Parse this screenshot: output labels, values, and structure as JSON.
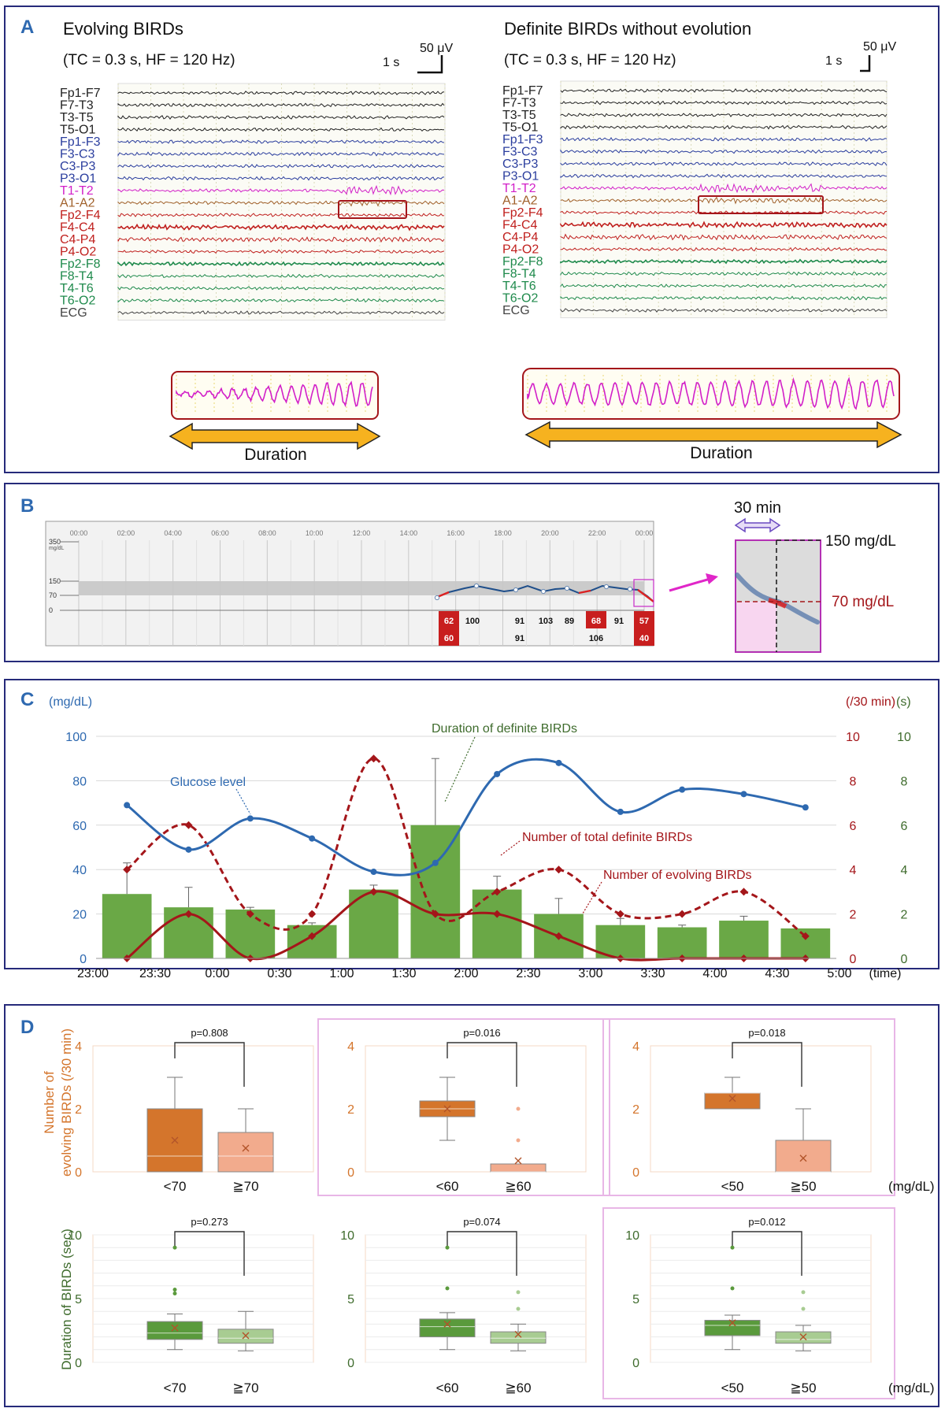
{
  "panel_labels": {
    "a": "A",
    "b": "B",
    "c": "C",
    "d": "D"
  },
  "panelA": {
    "left": {
      "title": "Evolving BIRDs",
      "settings": "(TC = 0.3 s, HF = 120 Hz)",
      "scale_time": "1 s",
      "scale_amp": "50 μV",
      "channels": [
        {
          "name": "Fp1-F7",
          "color": "#222222"
        },
        {
          "name": "F7-T3",
          "color": "#222222"
        },
        {
          "name": "T3-T5",
          "color": "#222222"
        },
        {
          "name": "T5-O1",
          "color": "#222222"
        },
        {
          "name": "Fp1-F3",
          "color": "#2b3e9e"
        },
        {
          "name": "F3-C3",
          "color": "#2b3e9e"
        },
        {
          "name": "C3-P3",
          "color": "#2b3e9e"
        },
        {
          "name": "P3-O1",
          "color": "#2b3e9e"
        },
        {
          "name": "T1-T2",
          "color": "#d21fc8"
        },
        {
          "name": "A1-A2",
          "color": "#a0602a"
        },
        {
          "name": "Fp2-F4",
          "color": "#c0201e"
        },
        {
          "name": "F4-C4",
          "color": "#c0201e"
        },
        {
          "name": "C4-P4",
          "color": "#c0201e"
        },
        {
          "name": "P4-O2",
          "color": "#c0201e"
        },
        {
          "name": "Fp2-F8",
          "color": "#1f8a4c"
        },
        {
          "name": "F8-T4",
          "color": "#1f8a4c"
        },
        {
          "name": "T4-T6",
          "color": "#1f8a4c"
        },
        {
          "name": "T6-O2",
          "color": "#1f8a4c"
        },
        {
          "name": "ECG",
          "color": "#444444"
        }
      ],
      "duration_label": "Duration"
    },
    "right": {
      "title": "Definite BIRDs without evolution",
      "settings": "(TC = 0.3 s, HF = 120 Hz)",
      "scale_time": "1 s",
      "scale_amp": "50 μV",
      "channels": [
        {
          "name": "Fp1-F7",
          "color": "#222222"
        },
        {
          "name": "F7-T3",
          "color": "#222222"
        },
        {
          "name": "T3-T5",
          "color": "#222222"
        },
        {
          "name": "T5-O1",
          "color": "#222222"
        },
        {
          "name": "Fp1-F3",
          "color": "#2b3e9e"
        },
        {
          "name": "F3-C3",
          "color": "#2b3e9e"
        },
        {
          "name": "C3-P3",
          "color": "#2b3e9e"
        },
        {
          "name": "P3-O1",
          "color": "#2b3e9e"
        },
        {
          "name": "T1-T2",
          "color": "#d21fc8"
        },
        {
          "name": "A1-A2",
          "color": "#a0602a"
        },
        {
          "name": "Fp2-F4",
          "color": "#c0201e"
        },
        {
          "name": "F4-C4",
          "color": "#c0201e"
        },
        {
          "name": "C4-P4",
          "color": "#c0201e"
        },
        {
          "name": "P4-O2",
          "color": "#c0201e"
        },
        {
          "name": "Fp2-F8",
          "color": "#1f8a4c"
        },
        {
          "name": "F8-T4",
          "color": "#1f8a4c"
        },
        {
          "name": "T4-T6",
          "color": "#1f8a4c"
        },
        {
          "name": "T6-O2",
          "color": "#1f8a4c"
        },
        {
          "name": "ECG",
          "color": "#444444"
        }
      ],
      "duration_label": "Duration"
    }
  },
  "panelB": {
    "time_ticks": [
      "00:00",
      "02:00",
      "04:00",
      "06:00",
      "08:00",
      "10:00",
      "12:00",
      "14:00",
      "16:00",
      "18:00",
      "20:00",
      "22:00",
      "00:00"
    ],
    "y_ticks": [
      "350",
      "150",
      "70",
      "0"
    ],
    "y_unit": "mg/dL",
    "readings_top": [
      {
        "v": "62",
        "red": true
      },
      {
        "v": "100",
        "red": false
      },
      {
        "v": "91",
        "red": false
      },
      {
        "v": "103",
        "red": false
      },
      {
        "v": "89",
        "red": false
      },
      {
        "v": "68",
        "red": true
      },
      {
        "v": "91",
        "red": false
      },
      {
        "v": "57",
        "red": true
      }
    ],
    "readings_bottom": [
      {
        "v": "60",
        "red": true
      },
      {
        "v": "91",
        "red": false
      },
      {
        "v": "106",
        "red": false
      },
      {
        "v": "40",
        "red": true
      }
    ],
    "zoom_window_label": "30 min",
    "label_150": "150 mg/dL",
    "label_70": "70 mg/dL"
  },
  "chart_data": [
    {
      "type": "bar+line",
      "title": "",
      "x_labels": [
        "23:00",
        "23:30",
        "0:00",
        "0:30",
        "1:00",
        "1:30",
        "2:00",
        "2:30",
        "3:00",
        "3:30",
        "4:00",
        "4:30",
        "5:00"
      ],
      "x_unit": "(time)",
      "left_axis": {
        "label": "(mg/dL)",
        "ticks": [
          "0",
          "20",
          "40",
          "60",
          "80",
          "100"
        ],
        "range": [
          0,
          100
        ]
      },
      "right_axis_1": {
        "label": "(/30 min)",
        "ticks": [
          "0",
          "2",
          "4",
          "6",
          "8",
          "10"
        ],
        "range": [
          0,
          10
        ]
      },
      "right_axis_2": {
        "label": "(s)",
        "ticks": [
          "0",
          "2",
          "4",
          "6",
          "8",
          "10"
        ],
        "range": [
          0,
          10
        ]
      },
      "duration_bars": {
        "name": "Duration of definite BIRDs",
        "unit": "s",
        "values": [
          2.9,
          2.3,
          2.2,
          1.5,
          3.1,
          6.0,
          3.1,
          2.0,
          1.5,
          1.4,
          1.7,
          1.35
        ],
        "error_up": [
          1.4,
          0.9,
          0.1,
          0.1,
          0.2,
          3.0,
          0.6,
          0.7,
          0.3,
          0.1,
          0.2,
          0.0
        ]
      },
      "glucose": {
        "name": "Glucose level",
        "unit": "mg/dL",
        "x_index": [
          0.25,
          1.25,
          2.25,
          3.25,
          4.25,
          5.25,
          6.25,
          7.25,
          8.25,
          9.25,
          10.25,
          11.25
        ],
        "values": [
          69,
          49,
          63,
          54,
          39,
          43,
          83,
          88,
          66,
          76,
          74,
          68
        ]
      },
      "total_definite": {
        "name": "Number of total definite BIRDs",
        "unit": "/30 min",
        "x_index": [
          0.25,
          1.25,
          2.25,
          3.25,
          4.25,
          5.25,
          6.25,
          7.25,
          8.25,
          9.25,
          10.25,
          11.25
        ],
        "values": [
          4,
          6,
          2,
          2,
          9,
          2,
          3,
          4,
          2,
          2,
          3,
          1
        ]
      },
      "evolving": {
        "name": "Number of evolving BIRDs",
        "unit": "/30 min",
        "x_index": [
          0.25,
          1.25,
          2.25,
          3.25,
          4.25,
          5.25,
          6.25,
          7.25,
          8.25,
          9.25,
          10.25,
          11.25
        ],
        "values": [
          0,
          2,
          0,
          1,
          3,
          2,
          2,
          1,
          0,
          0,
          0,
          0
        ]
      }
    },
    {
      "type": "boxplot",
      "panel": "D",
      "rows": [
        {
          "ylabel": "Number of evolving BIRDs (/30 min)",
          "yticks": [
            "0",
            "2",
            "4"
          ],
          "ymax": 4,
          "colors": [
            "#d4752c",
            "#f2ab8d"
          ],
          "groups": [
            {
              "pvalue": "p=0.808",
              "highlight": false,
              "labels": [
                "<70",
                "≧70"
              ],
              "boxes": [
                {
                  "min": 0,
                  "q1": 0,
                  "median": 0.5,
                  "q3": 2,
                  "max": 3,
                  "mean": 1.0,
                  "outliers": []
                },
                {
                  "min": 0,
                  "q1": 0,
                  "median": 0.5,
                  "q3": 1.25,
                  "max": 2,
                  "mean": 0.75,
                  "outliers": []
                }
              ]
            },
            {
              "pvalue": "p=0.016",
              "highlight": true,
              "labels": [
                "<60",
                "≧60"
              ],
              "boxes": [
                {
                  "min": 1,
                  "q1": 1.75,
                  "median": 2,
                  "q3": 2.25,
                  "max": 3,
                  "mean": 2.0,
                  "outliers": []
                },
                {
                  "min": 0,
                  "q1": 0,
                  "median": 0,
                  "q3": 0.25,
                  "max": 0.25,
                  "mean": 0.35,
                  "outliers": [
                    1,
                    2
                  ]
                }
              ]
            },
            {
              "pvalue": "p=0.018",
              "highlight": true,
              "labels": [
                "<50",
                "≧50"
              ],
              "unit": "(mg/dL)",
              "boxes": [
                {
                  "min": 2,
                  "q1": 2,
                  "median": 2.5,
                  "q3": 2.5,
                  "max": 3,
                  "mean": 2.33,
                  "outliers": []
                },
                {
                  "min": 0,
                  "q1": 0,
                  "median": 0,
                  "q3": 1,
                  "max": 2,
                  "mean": 0.43,
                  "outliers": []
                }
              ]
            }
          ]
        },
        {
          "ylabel": "Duration of BIRDs (sec)",
          "yticks": [
            "0",
            "5",
            "10"
          ],
          "ymax": 10,
          "colors": [
            "#5a9a3c",
            "#a8cc92"
          ],
          "groups": [
            {
              "pvalue": "p=0.273",
              "highlight": false,
              "labels": [
                "<70",
                "≧70"
              ],
              "boxes": [
                {
                  "min": 1,
                  "q1": 1.8,
                  "median": 2.3,
                  "q3": 3.2,
                  "max": 3.8,
                  "mean": 2.7,
                  "outliers": [
                    5.4,
                    5.7,
                    9
                  ]
                },
                {
                  "min": 0.9,
                  "q1": 1.5,
                  "median": 1.9,
                  "q3": 2.6,
                  "max": 4,
                  "mean": 2.1,
                  "outliers": []
                }
              ]
            },
            {
              "pvalue": "p=0.074",
              "highlight": false,
              "labels": [
                "<60",
                "≧60"
              ],
              "boxes": [
                {
                  "min": 1,
                  "q1": 2,
                  "median": 2.8,
                  "q3": 3.4,
                  "max": 3.9,
                  "mean": 3.0,
                  "outliers": [
                    5.8,
                    9
                  ]
                },
                {
                  "min": 0.9,
                  "q1": 1.5,
                  "median": 1.9,
                  "q3": 2.4,
                  "max": 3,
                  "mean": 2.2,
                  "outliers": [
                    4.2,
                    5.5
                  ]
                }
              ]
            },
            {
              "pvalue": "p=0.012",
              "highlight": true,
              "labels": [
                "<50",
                "≧50"
              ],
              "unit": "(mg/dL)",
              "boxes": [
                {
                  "min": 1,
                  "q1": 2.1,
                  "median": 2.9,
                  "q3": 3.3,
                  "max": 3.7,
                  "mean": 3.1,
                  "outliers": [
                    5.8,
                    9
                  ]
                },
                {
                  "min": 0.9,
                  "q1": 1.5,
                  "median": 1.8,
                  "q3": 2.4,
                  "max": 2.9,
                  "mean": 2.0,
                  "outliers": [
                    4.2,
                    5.5
                  ]
                }
              ]
            }
          ]
        }
      ]
    }
  ],
  "colors": {
    "frame": "#262a7a",
    "blue": "#2e69b0",
    "darkred": "#a4161a",
    "green": "#66a844",
    "olive": "#3e6b2c",
    "magenta": "#e026c8",
    "orange": "#d4752c",
    "arrow_yellow": "#f6b21f"
  }
}
